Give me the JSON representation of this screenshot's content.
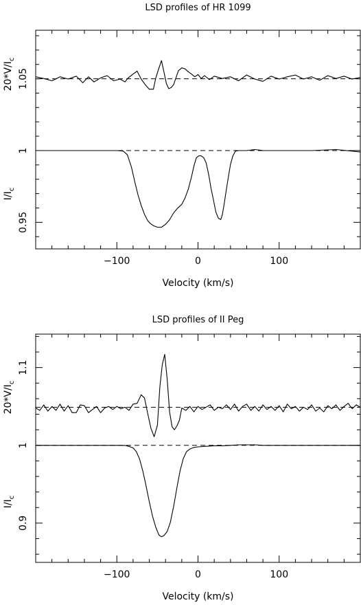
{
  "chart_data": [
    {
      "type": "line",
      "title": "LSD profiles of HR 1099",
      "xlabel": "Velocity (km/s)",
      "ylabel_upper": "20*V/I",
      "ylabel_upper_sub": "c",
      "ylabel_lower": "I/I",
      "ylabel_lower_sub": "c",
      "xlim": [
        -200,
        200
      ],
      "ylim": [
        0.9315,
        1.0838
      ],
      "xticks": [
        -100,
        0,
        100
      ],
      "xtick_labels": [
        "−100",
        "0",
        "100"
      ],
      "yticks": [
        1.05,
        1,
        0.95
      ],
      "ytick_labels": [
        "1.05",
        "1",
        "0.95"
      ],
      "reference_lines": [
        1.05,
        1.0
      ],
      "series": [
        {
          "role": "stokes-V",
          "x": [
            -200,
            -190,
            -180,
            -170,
            -160,
            -150,
            -142,
            -135,
            -128,
            -120,
            -112,
            -104,
            -96,
            -90,
            -86,
            -80,
            -75,
            -70,
            -65,
            -60,
            -55,
            -52,
            -48,
            -45,
            -42,
            -39,
            -36,
            -33,
            -30,
            -27,
            -24,
            -20,
            -16,
            -12,
            -8,
            -4,
            0,
            4,
            8,
            14,
            20,
            30,
            40,
            50,
            60,
            70,
            80,
            90,
            100,
            110,
            120,
            130,
            140,
            150,
            160,
            170,
            180,
            190,
            200
          ],
          "y": [
            1.0514,
            1.0502,
            1.0486,
            1.0514,
            1.0498,
            1.0518,
            1.0472,
            1.0514,
            1.0478,
            1.0506,
            1.0522,
            1.0486,
            1.0498,
            1.0478,
            1.0506,
            1.0533,
            1.0553,
            1.0498,
            1.0459,
            1.0427,
            1.0427,
            1.0506,
            1.0576,
            1.0627,
            1.0549,
            1.0467,
            1.0431,
            1.0439,
            1.0459,
            1.051,
            1.0557,
            1.0576,
            1.0569,
            1.0549,
            1.0533,
            1.0514,
            1.0529,
            1.0502,
            1.0522,
            1.0494,
            1.0518,
            1.0502,
            1.0514,
            1.0486,
            1.0526,
            1.0498,
            1.0482,
            1.0518,
            1.0498,
            1.0514,
            1.0526,
            1.0498,
            1.0514,
            1.049,
            1.0522,
            1.0502,
            1.0518,
            1.0498,
            1.051
          ]
        },
        {
          "role": "stokes-I",
          "x": [
            -200,
            -100,
            -92,
            -87,
            -82,
            -78,
            -74,
            -70,
            -66,
            -62,
            -59,
            -55,
            -50,
            -45,
            -40,
            -35,
            -30,
            -25,
            -20,
            -16,
            -12,
            -8,
            -5,
            -2,
            1,
            4,
            7,
            10,
            13,
            16,
            19,
            22,
            25,
            28,
            30,
            32,
            34,
            37,
            40,
            43,
            46,
            50,
            55,
            60,
            70,
            80,
            100,
            140,
            170,
            200
          ],
          "y": [
            1.0,
            1.0,
            0.9996,
            0.997,
            0.9885,
            0.9784,
            0.9693,
            0.9618,
            0.9556,
            0.9512,
            0.9493,
            0.9477,
            0.9466,
            0.9466,
            0.9486,
            0.9518,
            0.9566,
            0.9599,
            0.9626,
            0.9669,
            0.973,
            0.9816,
            0.9893,
            0.995,
            0.9963,
            0.9963,
            0.995,
            0.9915,
            0.9837,
            0.9739,
            0.9656,
            0.9572,
            0.9529,
            0.9519,
            0.9554,
            0.9618,
            0.9693,
            0.9803,
            0.9903,
            0.9963,
            0.9995,
            1.0,
            1.0,
            1.0,
            1.0007,
            1.0,
            1.0,
            1.0,
            1.0007,
            0.999
          ]
        }
      ]
    },
    {
      "type": "line",
      "title": "LSD profiles of II Peg",
      "xlabel": "Velocity (km/s)",
      "ylabel_upper": "20*V/I",
      "ylabel_upper_sub": "c",
      "ylabel_lower": "I/I",
      "ylabel_lower_sub": "c",
      "xlim": [
        -200,
        200
      ],
      "ylim": [
        0.8495,
        1.143
      ],
      "xticks": [
        -100,
        0,
        100
      ],
      "xtick_labels": [
        "−100",
        "0",
        "100"
      ],
      "yticks": [
        1.1,
        1,
        0.9
      ],
      "ytick_labels": [
        "1.1",
        "1",
        "0.9"
      ],
      "reference_lines": [
        1.049,
        1.0
      ],
      "series": [
        {
          "role": "stokes-V",
          "x": [
            -200,
            -195,
            -190,
            -185,
            -180,
            -175,
            -170,
            -165,
            -160,
            -155,
            -150,
            -145,
            -140,
            -135,
            -130,
            -125,
            -120,
            -115,
            -110,
            -105,
            -100,
            -95,
            -90,
            -85,
            -80,
            -75,
            -70,
            -66,
            -62,
            -58,
            -54,
            -50,
            -47,
            -44,
            -41,
            -38,
            -35,
            -32,
            -29,
            -26,
            -23,
            -20,
            -15,
            -10,
            -5,
            0,
            5,
            10,
            15,
            20,
            25,
            30,
            35,
            40,
            45,
            50,
            55,
            60,
            65,
            70,
            75,
            80,
            85,
            90,
            95,
            100,
            105,
            110,
            115,
            120,
            125,
            130,
            135,
            140,
            145,
            150,
            155,
            160,
            165,
            170,
            175,
            180,
            185,
            190,
            195,
            200
          ],
          "y": [
            1.048,
            1.045,
            1.052,
            1.044,
            1.05,
            1.045,
            1.053,
            1.044,
            1.051,
            1.042,
            1.042,
            1.052,
            1.051,
            1.042,
            1.046,
            1.05,
            1.042,
            1.048,
            1.05,
            1.046,
            1.05,
            1.047,
            1.049,
            1.045,
            1.053,
            1.054,
            1.065,
            1.061,
            1.041,
            1.022,
            1.011,
            1.026,
            1.075,
            1.104,
            1.117,
            1.085,
            1.043,
            1.024,
            1.02,
            1.025,
            1.032,
            1.048,
            1.045,
            1.05,
            1.043,
            1.05,
            1.046,
            1.049,
            1.052,
            1.045,
            1.049,
            1.047,
            1.052,
            1.046,
            1.053,
            1.044,
            1.05,
            1.053,
            1.045,
            1.05,
            1.044,
            1.052,
            1.046,
            1.05,
            1.045,
            1.051,
            1.043,
            1.053,
            1.047,
            1.05,
            1.044,
            1.049,
            1.046,
            1.052,
            1.044,
            1.048,
            1.043,
            1.051,
            1.047,
            1.052,
            1.045,
            1.05,
            1.054,
            1.047,
            1.052,
            1.049
          ]
        },
        {
          "role": "stokes-I",
          "x": [
            -200,
            -100,
            -90,
            -85,
            -80,
            -76,
            -72,
            -68,
            -64,
            -60,
            -56,
            -52,
            -48,
            -45,
            -42,
            -38,
            -34,
            -30,
            -26,
            -22,
            -18,
            -14,
            -10,
            -5,
            0,
            10,
            20,
            30,
            40,
            50,
            60,
            70,
            80,
            100,
            140,
            170,
            200
          ],
          "y": [
            1.0,
            1.0,
            0.9999,
            0.9986,
            0.9967,
            0.9919,
            0.9825,
            0.967,
            0.948,
            0.9276,
            0.9087,
            0.8946,
            0.8845,
            0.8825,
            0.8839,
            0.8892,
            0.9013,
            0.9215,
            0.9457,
            0.9678,
            0.9833,
            0.992,
            0.9953,
            0.9973,
            0.998,
            0.9987,
            0.9994,
            0.9994,
            1.0,
            1.0007,
            1.0007,
            1.0007,
            1.0,
            1.0,
            1.0,
            1.0,
            1.0
          ]
        }
      ]
    }
  ]
}
